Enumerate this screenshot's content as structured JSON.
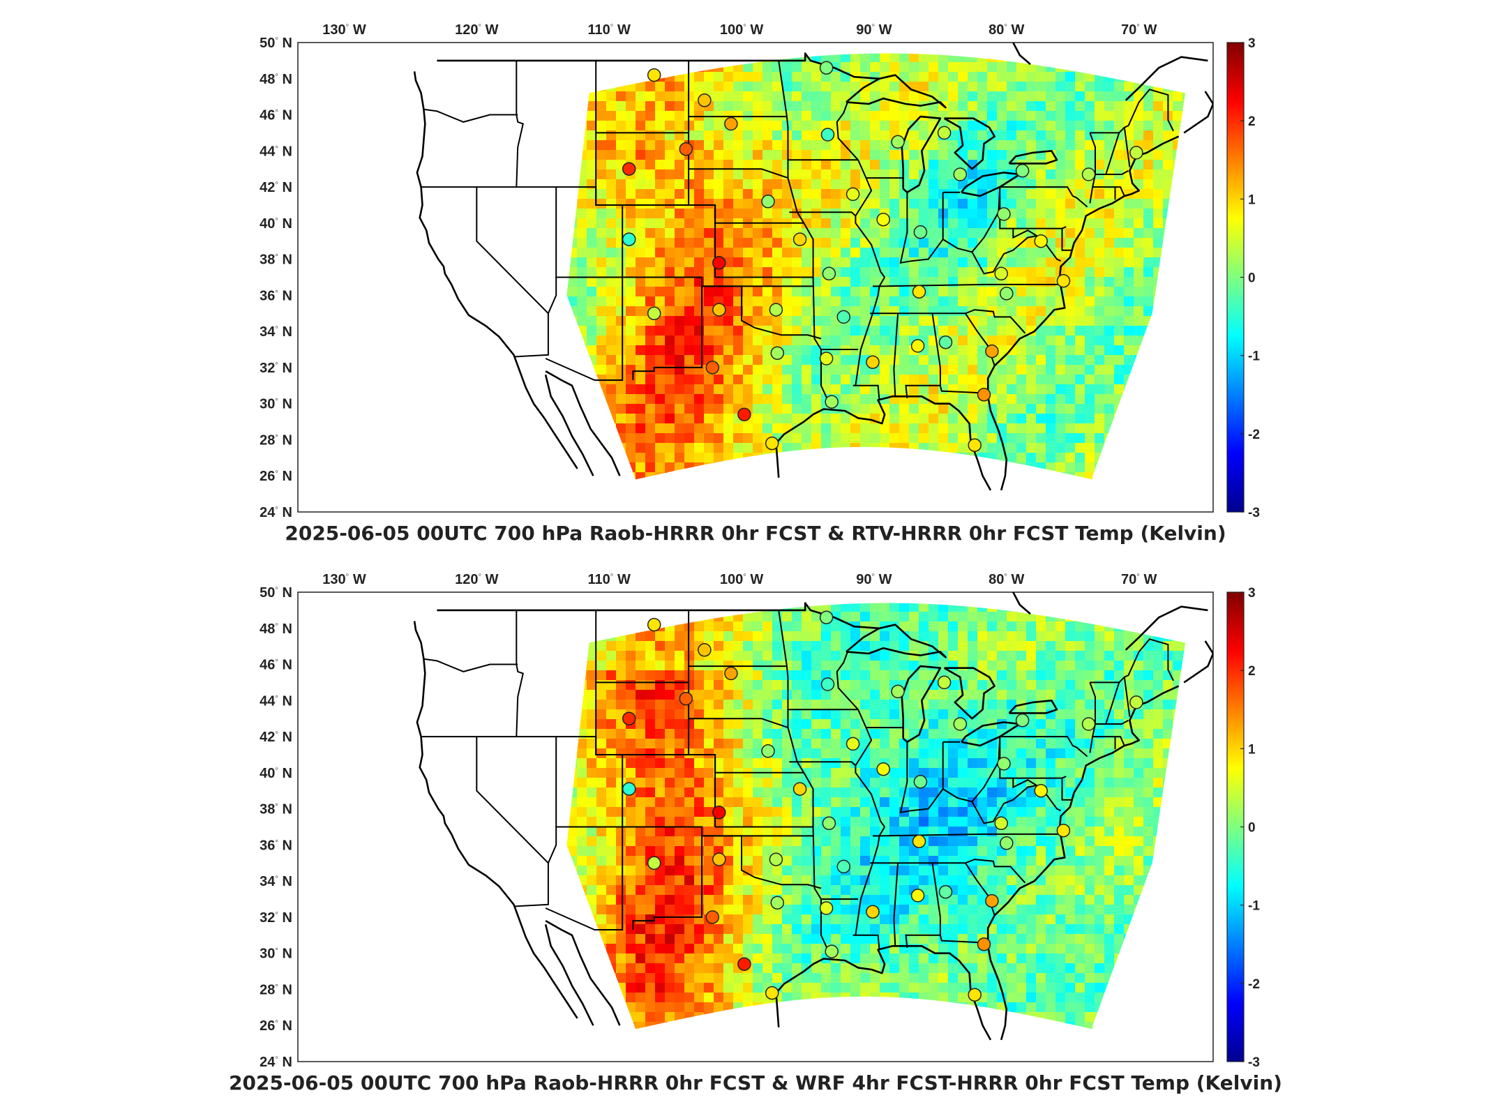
{
  "colorbar": {
    "ticks": [
      "3",
      "2",
      "1",
      "0",
      "-1",
      "-2",
      "-3"
    ],
    "range": [
      -3,
      3
    ],
    "colormap": "jet"
  },
  "panels": [
    {
      "title": "2025-06-05 00UTC 700 hPa Raob-HRRR 0hr FCST & RTV-HRRR 0hr FCST Temp (Kelvin)",
      "lon_labels": [
        "130",
        "120",
        "110",
        "100",
        "90",
        "80",
        "70"
      ],
      "lon_suffix": "W",
      "lat_labels": [
        "50",
        "48",
        "46",
        "44",
        "42",
        "40",
        "38",
        "36",
        "34",
        "32",
        "30",
        "28",
        "26",
        "24"
      ],
      "lat_suffix": "N",
      "stations": [
        {
          "lon": -106.6,
          "lat": 48.2,
          "value": 0.9
        },
        {
          "lon": -102.8,
          "lat": 46.8,
          "value": 1.1
        },
        {
          "lon": -100.8,
          "lat": 45.5,
          "value": 1.3
        },
        {
          "lon": -93.6,
          "lat": 48.6,
          "value": 0.0
        },
        {
          "lon": -93.5,
          "lat": 44.9,
          "value": -0.4
        },
        {
          "lon": -88.2,
          "lat": 44.5,
          "value": 0.2
        },
        {
          "lon": -84.7,
          "lat": 45.0,
          "value": 0.4
        },
        {
          "lon": -83.5,
          "lat": 42.7,
          "value": 0.2
        },
        {
          "lon": -78.8,
          "lat": 42.9,
          "value": 0.0
        },
        {
          "lon": -73.8,
          "lat": 42.7,
          "value": 0.3
        },
        {
          "lon": -70.2,
          "lat": 43.9,
          "value": 0.4
        },
        {
          "lon": -104.2,
          "lat": 44.1,
          "value": 1.7
        },
        {
          "lon": -108.5,
          "lat": 43.0,
          "value": 2.0
        },
        {
          "lon": -98.0,
          "lat": 41.2,
          "value": 0.1
        },
        {
          "lon": -91.6,
          "lat": 41.6,
          "value": 0.6
        },
        {
          "lon": -89.3,
          "lat": 40.2,
          "value": 0.7
        },
        {
          "lon": -86.5,
          "lat": 39.5,
          "value": -0.1
        },
        {
          "lon": -80.2,
          "lat": 40.5,
          "value": 0.1
        },
        {
          "lon": -77.4,
          "lat": 39.0,
          "value": 0.8
        },
        {
          "lon": -108.5,
          "lat": 39.1,
          "value": -0.5
        },
        {
          "lon": -101.7,
          "lat": 37.8,
          "value": 2.3
        },
        {
          "lon": -95.6,
          "lat": 39.1,
          "value": 1.0
        },
        {
          "lon": -93.4,
          "lat": 37.2,
          "value": 0.1
        },
        {
          "lon": -86.6,
          "lat": 36.2,
          "value": 0.9
        },
        {
          "lon": -80.4,
          "lat": 37.2,
          "value": 0.5
        },
        {
          "lon": -80.0,
          "lat": 36.1,
          "value": 0.1
        },
        {
          "lon": -75.7,
          "lat": 36.8,
          "value": 0.9
        },
        {
          "lon": -106.6,
          "lat": 35.0,
          "value": 0.4
        },
        {
          "lon": -101.7,
          "lat": 35.2,
          "value": 1.1
        },
        {
          "lon": -97.4,
          "lat": 35.2,
          "value": 0.3
        },
        {
          "lon": -92.3,
          "lat": 34.8,
          "value": -0.3
        },
        {
          "lon": -86.7,
          "lat": 33.2,
          "value": 0.8
        },
        {
          "lon": -84.6,
          "lat": 33.4,
          "value": -0.2
        },
        {
          "lon": -81.1,
          "lat": 32.9,
          "value": 1.3
        },
        {
          "lon": -97.3,
          "lat": 32.8,
          "value": 0.2
        },
        {
          "lon": -93.6,
          "lat": 32.5,
          "value": 0.6
        },
        {
          "lon": -90.1,
          "lat": 32.3,
          "value": 1.0
        },
        {
          "lon": -102.2,
          "lat": 32.0,
          "value": 1.7
        },
        {
          "lon": -99.8,
          "lat": 29.4,
          "value": 2.1
        },
        {
          "lon": -97.7,
          "lat": 27.8,
          "value": 0.9
        },
        {
          "lon": -93.2,
          "lat": 30.1,
          "value": 0.2
        },
        {
          "lon": -81.7,
          "lat": 30.5,
          "value": 1.4
        },
        {
          "lon": -82.4,
          "lat": 27.7,
          "value": 0.9
        }
      ]
    },
    {
      "title": "2025-06-05 00UTC 700 hPa Raob-HRRR 0hr FCST & WRF 4hr FCST-HRRR 0hr FCST Temp (Kelvin)",
      "lon_labels": [
        "130",
        "120",
        "110",
        "100",
        "90",
        "80",
        "70"
      ],
      "lon_suffix": "W",
      "lat_labels": [
        "50",
        "48",
        "46",
        "44",
        "42",
        "40",
        "38",
        "36",
        "34",
        "32",
        "30",
        "28",
        "26",
        "24"
      ],
      "lat_suffix": "N",
      "stations": [
        {
          "lon": -106.6,
          "lat": 48.2,
          "value": 0.9
        },
        {
          "lon": -102.8,
          "lat": 46.8,
          "value": 1.1
        },
        {
          "lon": -100.8,
          "lat": 45.5,
          "value": 1.3
        },
        {
          "lon": -93.6,
          "lat": 48.6,
          "value": 0.0
        },
        {
          "lon": -93.5,
          "lat": 44.9,
          "value": -0.4
        },
        {
          "lon": -88.2,
          "lat": 44.5,
          "value": 0.2
        },
        {
          "lon": -84.7,
          "lat": 45.0,
          "value": 0.4
        },
        {
          "lon": -83.5,
          "lat": 42.7,
          "value": 0.2
        },
        {
          "lon": -78.8,
          "lat": 42.9,
          "value": 0.0
        },
        {
          "lon": -73.8,
          "lat": 42.7,
          "value": 0.3
        },
        {
          "lon": -70.2,
          "lat": 43.9,
          "value": 0.4
        },
        {
          "lon": -104.2,
          "lat": 44.1,
          "value": 1.7
        },
        {
          "lon": -108.5,
          "lat": 43.0,
          "value": 2.0
        },
        {
          "lon": -98.0,
          "lat": 41.2,
          "value": 0.1
        },
        {
          "lon": -91.6,
          "lat": 41.6,
          "value": 0.6
        },
        {
          "lon": -89.3,
          "lat": 40.2,
          "value": 0.7
        },
        {
          "lon": -86.5,
          "lat": 39.5,
          "value": -0.1
        },
        {
          "lon": -80.2,
          "lat": 40.5,
          "value": 0.1
        },
        {
          "lon": -77.4,
          "lat": 39.0,
          "value": 0.8
        },
        {
          "lon": -108.5,
          "lat": 39.1,
          "value": -0.5
        },
        {
          "lon": -101.7,
          "lat": 37.8,
          "value": 2.3
        },
        {
          "lon": -95.6,
          "lat": 39.1,
          "value": 1.0
        },
        {
          "lon": -93.4,
          "lat": 37.2,
          "value": 0.1
        },
        {
          "lon": -86.6,
          "lat": 36.2,
          "value": 0.9
        },
        {
          "lon": -80.4,
          "lat": 37.2,
          "value": 0.5
        },
        {
          "lon": -80.0,
          "lat": 36.1,
          "value": 0.1
        },
        {
          "lon": -75.7,
          "lat": 36.8,
          "value": 0.9
        },
        {
          "lon": -106.6,
          "lat": 35.0,
          "value": 0.4
        },
        {
          "lon": -101.7,
          "lat": 35.2,
          "value": 1.1
        },
        {
          "lon": -97.4,
          "lat": 35.2,
          "value": 0.3
        },
        {
          "lon": -92.3,
          "lat": 34.8,
          "value": -0.3
        },
        {
          "lon": -86.7,
          "lat": 33.2,
          "value": 0.8
        },
        {
          "lon": -84.6,
          "lat": 33.4,
          "value": -0.2
        },
        {
          "lon": -81.1,
          "lat": 32.9,
          "value": 1.3
        },
        {
          "lon": -97.3,
          "lat": 32.8,
          "value": 0.2
        },
        {
          "lon": -93.6,
          "lat": 32.5,
          "value": 0.6
        },
        {
          "lon": -90.1,
          "lat": 32.3,
          "value": 1.0
        },
        {
          "lon": -102.2,
          "lat": 32.0,
          "value": 1.7
        },
        {
          "lon": -99.8,
          "lat": 29.4,
          "value": 2.1
        },
        {
          "lon": -97.7,
          "lat": 27.8,
          "value": 0.9
        },
        {
          "lon": -93.2,
          "lat": 30.1,
          "value": 0.2
        },
        {
          "lon": -81.7,
          "lat": 30.5,
          "value": 1.4
        },
        {
          "lon": -82.4,
          "lat": 27.7,
          "value": 0.9
        }
      ]
    }
  ]
}
